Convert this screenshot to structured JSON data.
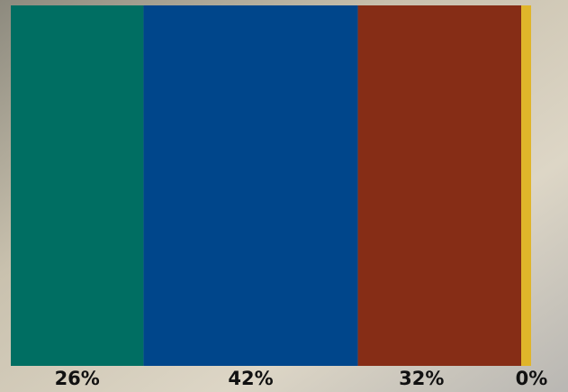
{
  "chart_data": {
    "type": "stacked-bar",
    "orientation": "horizontal",
    "values": [
      26,
      42,
      32,
      0
    ],
    "value_labels": [
      "26%",
      "42%",
      "32%",
      "0%"
    ],
    "colors": [
      "#006e62",
      "#00468b",
      "#862d16",
      "#e0b52a"
    ]
  }
}
